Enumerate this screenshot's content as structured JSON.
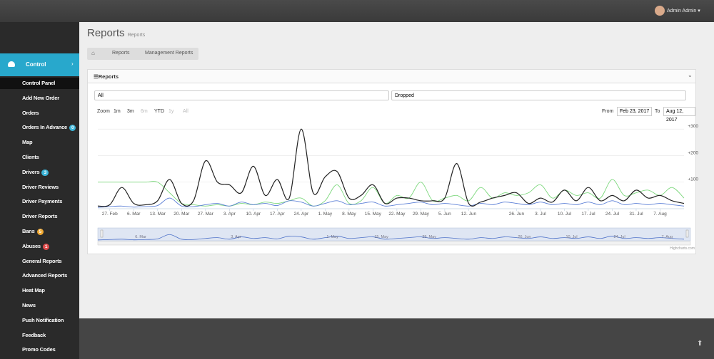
{
  "topbar": {
    "user": "Admin Admin"
  },
  "sidebar": {
    "active": "Control",
    "items": [
      {
        "label": "Control Panel"
      },
      {
        "label": "Add New Order"
      },
      {
        "label": "Orders"
      },
      {
        "label": "Orders In Advance",
        "badge": "0",
        "badge_color": "#3bb4d8"
      },
      {
        "label": "Map"
      },
      {
        "label": "Clients"
      },
      {
        "label": "Drivers",
        "badge": "3",
        "badge_color": "#3bb4d8"
      },
      {
        "label": "Driver Reviews"
      },
      {
        "label": "Driver Payments"
      },
      {
        "label": "Driver Reports"
      },
      {
        "label": "Bans",
        "badge": "5",
        "badge_color": "#f0a830"
      },
      {
        "label": "Abuses",
        "badge": "1",
        "badge_color": "#e04b4b"
      },
      {
        "label": "General Reports"
      },
      {
        "label": "Advanced Reports"
      },
      {
        "label": "Heat Map"
      },
      {
        "label": "News"
      },
      {
        "label": "Push Notification"
      },
      {
        "label": "Feedback"
      },
      {
        "label": "Promo Codes"
      }
    ]
  },
  "header": {
    "title": "Reports",
    "subtitle": "Reports"
  },
  "breadcrumb": [
    "Reports",
    "Management Reports"
  ],
  "panel": {
    "title": "Reports",
    "select1": "All",
    "select2": "Dropped"
  },
  "range_selector": {
    "zoom": "Zoom",
    "buttons": [
      "1m",
      "3m",
      "6m",
      "YTD",
      "1y",
      "All"
    ],
    "from_label": "From",
    "from": "Feb 23, 2017",
    "to_label": "To",
    "to": "Aug 12, 2017"
  },
  "chart_data": {
    "type": "line",
    "x": [
      "23. Feb",
      "27. Feb",
      "2. Mar",
      "6. Mar",
      "9. Mar",
      "13. Mar",
      "16. Mar",
      "20. Mar",
      "23. Mar",
      "27. Mar",
      "30. Mar",
      "3. Apr",
      "6. Apr",
      "10. Apr",
      "13. Apr",
      "17. Apr",
      "20. Apr",
      "24. Apr",
      "27. Apr",
      "1. May",
      "4. May",
      "8. May",
      "11. May",
      "15. May",
      "18. May",
      "22. May",
      "25. May",
      "29. May",
      "1. Jun",
      "5. Jun",
      "8. Jun",
      "12. Jun",
      "15. Jun",
      "19. Jun",
      "22. Jun",
      "26. Jun",
      "29. Jun",
      "3. Jul",
      "6. Jul",
      "10. Jul",
      "13. Jul",
      "17. Jul",
      "20. Jul",
      "24. Jul",
      "27. Jul",
      "31. Jul",
      "3. Aug",
      "7. Aug",
      "10. Aug",
      "12. Aug"
    ],
    "xticks": [
      "27. Feb",
      "6. Mar",
      "13. Mar",
      "20. Mar",
      "27. Mar",
      "3. Apr",
      "10. Apr",
      "17. Apr",
      "24. Apr",
      "1. May",
      "8. May",
      "15. May",
      "22. May",
      "29. May",
      "5. Jun",
      "12. Jun",
      "26. Jun",
      "3. Jul",
      "10. Jul",
      "17. Jul",
      "24. Jul",
      "31. Jul",
      "7. Aug"
    ],
    "navigator_ticks": [
      "6. Mar",
      "3. Apr",
      "1. May",
      "15. May",
      "29. May",
      "26. Jun",
      "10. Jul",
      "24. Jul",
      "7. Aug"
    ],
    "ylim": [
      0,
      330
    ],
    "yticks": [
      {
        "value": 100,
        "label": "+100"
      },
      {
        "value": 200,
        "label": "+200"
      },
      {
        "value": 300,
        "label": "+300"
      }
    ],
    "grid": true,
    "series": [
      {
        "color": "#222222",
        "values": [
          10,
          15,
          80,
          20,
          15,
          30,
          110,
          20,
          30,
          180,
          100,
          90,
          60,
          160,
          50,
          110,
          40,
          300,
          60,
          120,
          140,
          40,
          50,
          90,
          20,
          40,
          40,
          30,
          30,
          40,
          170,
          20,
          25,
          40,
          50,
          60,
          20,
          40,
          25,
          70,
          30,
          80,
          30,
          50,
          30,
          70,
          40,
          50,
          30,
          20
        ]
      },
      {
        "color": "#7ed87e",
        "values": [
          100,
          100,
          100,
          100,
          100,
          100,
          60,
          20,
          15,
          10,
          15,
          10,
          20,
          15,
          25,
          20,
          30,
          40,
          10,
          30,
          90,
          20,
          30,
          80,
          20,
          50,
          40,
          100,
          30,
          40,
          50,
          30,
          80,
          40,
          60,
          50,
          60,
          90,
          40,
          70,
          50,
          60,
          40,
          110,
          50,
          60,
          70,
          50,
          80,
          40
        ]
      },
      {
        "color": "#5b7fd6",
        "values": [
          5,
          8,
          10,
          6,
          8,
          12,
          40,
          10,
          8,
          15,
          20,
          10,
          25,
          15,
          20,
          12,
          30,
          25,
          10,
          20,
          30,
          15,
          20,
          25,
          10,
          15,
          20,
          25,
          15,
          20,
          15,
          10,
          20,
          15,
          25,
          20,
          15,
          25,
          15,
          20,
          15,
          25,
          15,
          30,
          15,
          20,
          15,
          20,
          15,
          10
        ]
      }
    ],
    "credit": "Highcharts.com"
  }
}
